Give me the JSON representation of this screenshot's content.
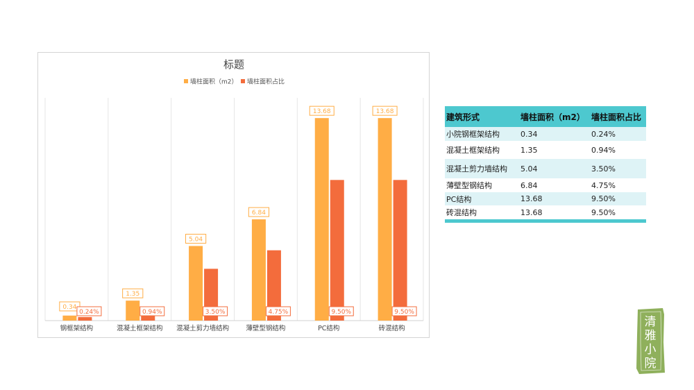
{
  "chart_data": {
    "type": "bar",
    "title": "标题",
    "categories": [
      "钢框架结构",
      "混凝土框架结构",
      "混凝土剪力墙结构",
      "薄壁型钢结构",
      "PC结构",
      "砖混结构"
    ],
    "series": [
      {
        "name": "墙柱面积（m2）",
        "values": [
          0.34,
          1.35,
          5.04,
          6.84,
          13.68,
          13.68
        ],
        "labels": [
          "0.34",
          "1.35",
          "5.04",
          "6.84",
          "13.68",
          "13.68"
        ],
        "color": "#ffad45"
      },
      {
        "name": "墙柱面积占比",
        "values": [
          0.24,
          0.94,
          3.5,
          4.75,
          9.5,
          9.5
        ],
        "labels": [
          "0.24%",
          "0.94%",
          "3.50%",
          "4.75%",
          "9.50%",
          "9.50%"
        ],
        "color": "#f36c3c"
      }
    ],
    "ylim": [
      0,
      15
    ],
    "grid": "vertical",
    "legend": "top"
  },
  "table": {
    "headers": [
      "建筑形式",
      "墙柱面积（m2）",
      "墙柱面积占比"
    ],
    "rows": [
      [
        "小院钢框架结构",
        "0.34",
        "0.24%"
      ],
      [
        "混凝土框架结构",
        "1.35",
        "0.94%"
      ],
      [
        "混凝土剪力墙结构",
        "5.04",
        "3.50%"
      ],
      [
        "薄壁型钢结构",
        "6.84",
        "4.75%"
      ],
      [
        "PC结构",
        "13.68",
        "9.50%"
      ],
      [
        "砖混结构",
        "13.68",
        "9.50%"
      ]
    ]
  },
  "seal": {
    "text": "清雅小院",
    "color": "#8fb05c"
  }
}
